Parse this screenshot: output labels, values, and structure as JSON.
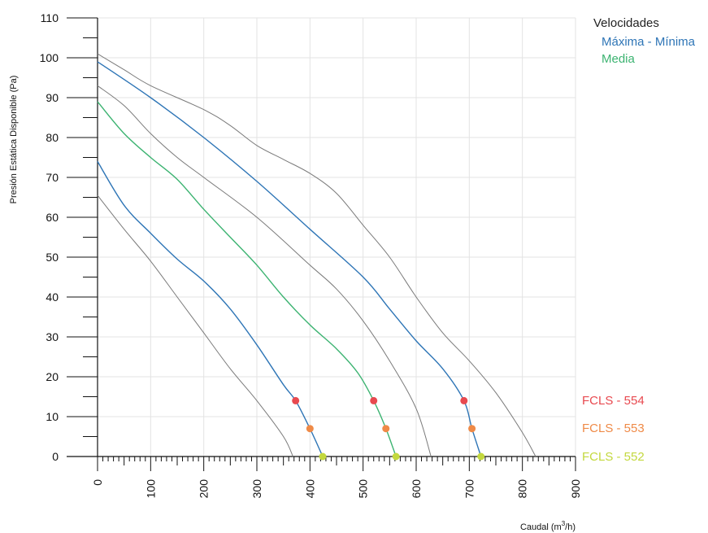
{
  "chart_data": {
    "type": "line",
    "xlabel": "Caudal (m³/h)",
    "ylabel": "Presión Estática Disponible (Pa)",
    "xlim": [
      0,
      900
    ],
    "ylim": [
      0,
      110
    ],
    "x_ticks": [
      0,
      100,
      200,
      300,
      400,
      500,
      600,
      700,
      800,
      900
    ],
    "y_ticks": [
      0,
      10,
      20,
      30,
      40,
      50,
      60,
      70,
      80,
      90,
      100,
      110
    ],
    "grid": true,
    "legend": {
      "title": "Velocidades",
      "position": "top-right",
      "entries": [
        {
          "label": "Máxima - Mínima",
          "color": "#2e75b6"
        },
        {
          "label": "Media",
          "color": "#3cb371"
        }
      ]
    },
    "series": [
      {
        "model": "FCLS - 554",
        "speed": "envelope",
        "color": "#7a7a7a",
        "points": [
          [
            0,
            101
          ],
          [
            50,
            97
          ],
          [
            100,
            93
          ],
          [
            200,
            87
          ],
          [
            250,
            83
          ],
          [
            300,
            78
          ],
          [
            350,
            74.5
          ],
          [
            400,
            71
          ],
          [
            450,
            66
          ],
          [
            500,
            58
          ],
          [
            550,
            50
          ],
          [
            600,
            40
          ],
          [
            650,
            31
          ],
          [
            700,
            24
          ],
          [
            750,
            16
          ],
          [
            800,
            6
          ],
          [
            825,
            0
          ]
        ]
      },
      {
        "model": "FCLS - 554",
        "speed": "Máxima - Mínima",
        "color": "#2e75b6",
        "points": [
          [
            0,
            99
          ],
          [
            100,
            90
          ],
          [
            200,
            80
          ],
          [
            300,
            69
          ],
          [
            400,
            57
          ],
          [
            500,
            45
          ],
          [
            550,
            37
          ],
          [
            600,
            29
          ],
          [
            650,
            22
          ],
          [
            690,
            14
          ],
          [
            705,
            7
          ],
          [
            722,
            0
          ]
        ]
      },
      {
        "model": "FCLS - 553",
        "speed": "envelope",
        "color": "#7a7a7a",
        "points": [
          [
            0,
            93
          ],
          [
            50,
            88
          ],
          [
            100,
            81
          ],
          [
            150,
            75
          ],
          [
            200,
            70
          ],
          [
            300,
            60
          ],
          [
            400,
            48
          ],
          [
            450,
            42
          ],
          [
            500,
            34
          ],
          [
            550,
            24
          ],
          [
            600,
            12
          ],
          [
            628,
            0
          ]
        ]
      },
      {
        "model": "FCLS - 553",
        "speed": "Media",
        "color": "#3cb371",
        "points": [
          [
            0,
            89
          ],
          [
            50,
            81
          ],
          [
            100,
            75
          ],
          [
            150,
            69.5
          ],
          [
            200,
            62
          ],
          [
            250,
            55
          ],
          [
            300,
            48
          ],
          [
            350,
            40
          ],
          [
            400,
            33
          ],
          [
            450,
            27
          ],
          [
            490,
            21
          ],
          [
            520,
            14
          ],
          [
            543,
            7
          ],
          [
            562,
            0
          ]
        ]
      },
      {
        "model": "FCLS - 552",
        "speed": "Máxima - Mínima",
        "color": "#2e75b6",
        "points": [
          [
            0,
            74
          ],
          [
            50,
            63
          ],
          [
            100,
            56
          ],
          [
            150,
            49.5
          ],
          [
            200,
            44
          ],
          [
            250,
            37
          ],
          [
            300,
            28
          ],
          [
            350,
            18
          ],
          [
            373,
            14
          ],
          [
            400,
            7
          ],
          [
            424,
            0
          ]
        ]
      },
      {
        "model": "FCLS - 552",
        "speed": "envelope",
        "color": "#7a7a7a",
        "points": [
          [
            0,
            65.5
          ],
          [
            50,
            57
          ],
          [
            100,
            49
          ],
          [
            150,
            40
          ],
          [
            200,
            31
          ],
          [
            250,
            22
          ],
          [
            300,
            14
          ],
          [
            350,
            5
          ],
          [
            368,
            0
          ]
        ]
      }
    ],
    "markers": [
      {
        "x": 373,
        "y": 14,
        "color": "#e8494f"
      },
      {
        "x": 400,
        "y": 7,
        "color": "#ef8a47"
      },
      {
        "x": 424,
        "y": 0,
        "color": "#c3d83e"
      },
      {
        "x": 520,
        "y": 14,
        "color": "#e8494f"
      },
      {
        "x": 543,
        "y": 7,
        "color": "#ef8a47"
      },
      {
        "x": 562,
        "y": 0,
        "color": "#c3d83e"
      },
      {
        "x": 690,
        "y": 14,
        "color": "#e8494f"
      },
      {
        "x": 705,
        "y": 7,
        "color": "#ef8a47"
      },
      {
        "x": 722,
        "y": 0,
        "color": "#c3d83e"
      }
    ],
    "model_labels": [
      {
        "text": "FCLS - 554",
        "color": "#e8494f"
      },
      {
        "text": "FCLS - 553",
        "color": "#ef8a47"
      },
      {
        "text": "FCLS - 552",
        "color": "#c3d83e"
      }
    ]
  }
}
